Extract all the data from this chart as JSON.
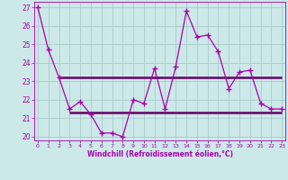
{
  "xlabel": "Windchill (Refroidissement éolien,°C)",
  "background_color": "#cce8e8",
  "grid_color": "#aacccc",
  "line_color": "#aa00aa",
  "hline_color": "#660066",
  "x_values": [
    0,
    1,
    2,
    3,
    4,
    5,
    6,
    7,
    8,
    9,
    10,
    11,
    12,
    13,
    14,
    15,
    16,
    17,
    18,
    19,
    20,
    21,
    22,
    23
  ],
  "y_values": [
    27.0,
    24.7,
    23.2,
    21.5,
    21.9,
    21.2,
    20.2,
    20.2,
    20.0,
    22.0,
    21.8,
    23.7,
    21.5,
    23.8,
    26.8,
    25.4,
    25.5,
    24.6,
    22.6,
    23.5,
    23.6,
    21.8,
    21.5,
    21.5
  ],
  "hline1_y": 23.2,
  "hline1_x_start": 2,
  "hline1_x_end": 23,
  "hline2_y": 21.3,
  "hline2_x_start": 3,
  "hline2_x_end": 23,
  "ylim": [
    19.8,
    27.3
  ],
  "xlim": [
    -0.3,
    23.3
  ],
  "yticks": [
    20,
    21,
    22,
    23,
    24,
    25,
    26,
    27
  ],
  "xticks": [
    0,
    1,
    2,
    3,
    4,
    5,
    6,
    7,
    8,
    9,
    10,
    11,
    12,
    13,
    14,
    15,
    16,
    17,
    18,
    19,
    20,
    21,
    22,
    23
  ],
  "figsize": [
    3.2,
    2.0
  ],
  "dpi": 100
}
